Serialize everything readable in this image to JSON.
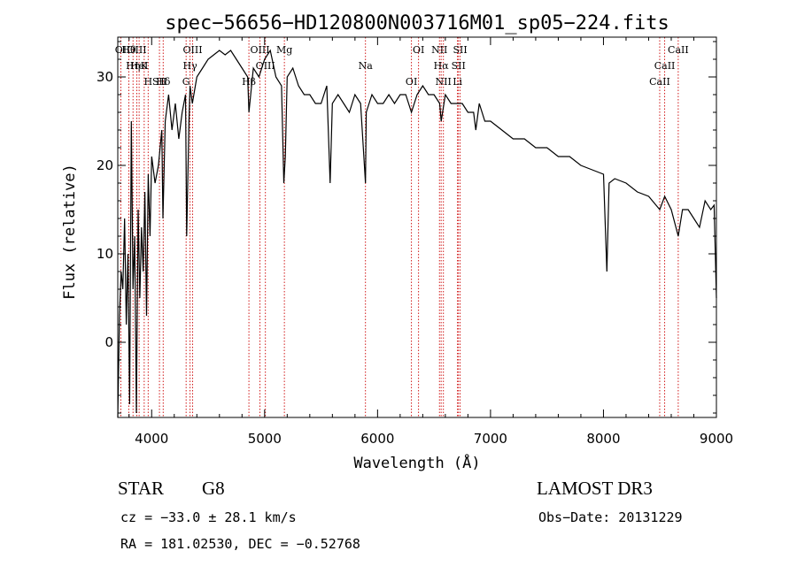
{
  "chart_data": {
    "type": "line",
    "title": "spec−56656−HD120800N003716M01_sp05−224.fits",
    "xlabel": "Wavelength (Å)",
    "ylabel": "Flux (relative)",
    "xlim": [
      3700,
      9000
    ],
    "ylim": [
      -8.5,
      34.5
    ],
    "x_ticks": [
      4000,
      5000,
      6000,
      7000,
      8000,
      9000
    ],
    "y_ticks": [
      0,
      10,
      20,
      30
    ],
    "grid": false,
    "series": [
      {
        "x": [
          3700,
          3715,
          3730,
          3745,
          3760,
          3775,
          3790,
          3805,
          3820,
          3835,
          3850,
          3865,
          3880,
          3895,
          3910,
          3925,
          3940,
          3955,
          3970,
          3985,
          4000,
          4030,
          4060,
          4090,
          4100,
          4120,
          4150,
          4180,
          4210,
          4240,
          4270,
          4300,
          4310,
          4330,
          4340,
          4360,
          4400,
          4450,
          4500,
          4550,
          4600,
          4650,
          4700,
          4750,
          4800,
          4850,
          4861,
          4900,
          4950,
          5000,
          5050,
          5100,
          5150,
          5170,
          5183,
          5200,
          5250,
          5300,
          5350,
          5400,
          5450,
          5500,
          5550,
          5580,
          5600,
          5650,
          5700,
          5750,
          5800,
          5850,
          5893,
          5900,
          5950,
          6000,
          6050,
          6100,
          6150,
          6200,
          6250,
          6300,
          6350,
          6400,
          6450,
          6500,
          6550,
          6563,
          6600,
          6650,
          6700,
          6750,
          6800,
          6850,
          6870,
          6900,
          6950,
          7000,
          7100,
          7200,
          7300,
          7400,
          7500,
          7600,
          7700,
          7800,
          7900,
          8000,
          8030,
          8050,
          8100,
          8200,
          8300,
          8400,
          8498,
          8542,
          8600,
          8662,
          8700,
          8750,
          8800,
          8850,
          8900,
          8950,
          8980,
          9000
        ],
        "y": [
          -8.5,
          3,
          8,
          6,
          14,
          2,
          10,
          -7,
          25,
          6,
          12,
          -8,
          15,
          5,
          13,
          8,
          17,
          3,
          19,
          12,
          21,
          18,
          20,
          24,
          14,
          25,
          28,
          24,
          27,
          23,
          26,
          28,
          12,
          25,
          29,
          27,
          30,
          31,
          32,
          32.5,
          33,
          32.5,
          33,
          32,
          31,
          30,
          26,
          31,
          30,
          32,
          33,
          30,
          29,
          18,
          21,
          30,
          31,
          29,
          28,
          28,
          27,
          27,
          29,
          18,
          27,
          28,
          27,
          26,
          28,
          27,
          18,
          26,
          28,
          27,
          27,
          28,
          27,
          28,
          28,
          26,
          28,
          29,
          28,
          28,
          27,
          25,
          28,
          27,
          27,
          27,
          26,
          26,
          24,
          27,
          25,
          25,
          24,
          23,
          23,
          22,
          22,
          21,
          21,
          20,
          19.5,
          19,
          8,
          18,
          18.5,
          18,
          17,
          16.5,
          15,
          16.5,
          15,
          12,
          15,
          15,
          14,
          13,
          16,
          15,
          15.5,
          5
        ]
      }
    ],
    "line_markers": [
      {
        "name": "Hθ",
        "wavelength": 3798
      },
      {
        "name": "K",
        "wavelength": 3934
      },
      {
        "name": "Hδ",
        "wavelength": 4102
      },
      {
        "name": "OI",
        "wavelength": 3727
      },
      {
        "name": "HeI",
        "wavelength": 3889
      },
      {
        "name": "SII",
        "wavelength": 4069
      },
      {
        "name": "OIII",
        "wavelength": 3869
      },
      {
        "name": "Hη",
        "wavelength": 3835
      },
      {
        "name": "H",
        "wavelength": 3969
      },
      {
        "name": "OIII",
        "wavelength": 4363
      },
      {
        "name": "Hγ",
        "wavelength": 4340
      },
      {
        "name": "G",
        "wavelength": 4305
      },
      {
        "name": "OIII",
        "wavelength": 4959
      },
      {
        "name": "OIII",
        "wavelength": 5007
      },
      {
        "name": "Hβ",
        "wavelength": 4861
      },
      {
        "name": "Mg",
        "wavelength": 5175
      },
      {
        "name": "Na",
        "wavelength": 5893
      },
      {
        "name": "OI",
        "wavelength": 6300
      },
      {
        "name": "OI",
        "wavelength": 6363
      },
      {
        "name": "Hα",
        "wavelength": 6563
      },
      {
        "name": "NII",
        "wavelength": 6583
      },
      {
        "name": "NII",
        "wavelength": 6548
      },
      {
        "name": "SII",
        "wavelength": 6716
      },
      {
        "name": "Li",
        "wavelength": 6708
      },
      {
        "name": "SII",
        "wavelength": 6731
      },
      {
        "name": "CaII",
        "wavelength": 8542
      },
      {
        "name": "CaII",
        "wavelength": 8498
      },
      {
        "name": "CaII",
        "wavelength": 8662
      }
    ]
  },
  "info": {
    "object_class": "STAR",
    "subclass": "G8",
    "survey": "LAMOST DR3",
    "redshift_line": "cz = −33.0 ± 28.1 km/s",
    "obs_date_line": "Obs−Date: 20131229",
    "coords_line": "RA = 181.02530, DEC =  −0.52768"
  },
  "colors": {
    "spectrum": "#000000",
    "marker_line": "#cc0000",
    "axes": "#000000"
  }
}
